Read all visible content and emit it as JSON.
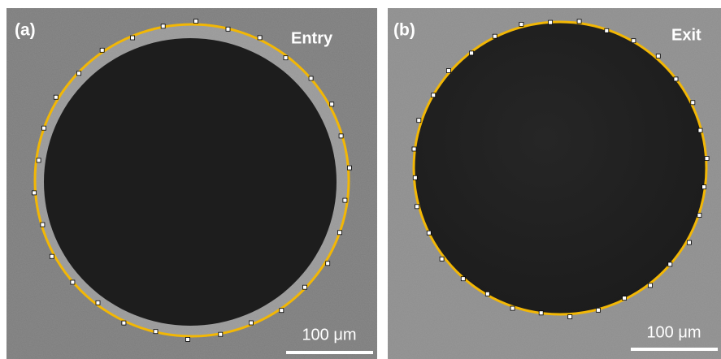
{
  "panels": [
    {
      "label": "(a)",
      "title": "Entry",
      "scale_bar": "100 μm"
    },
    {
      "label": "(b)",
      "title": "Exit",
      "scale_bar": "100 μm"
    }
  ]
}
